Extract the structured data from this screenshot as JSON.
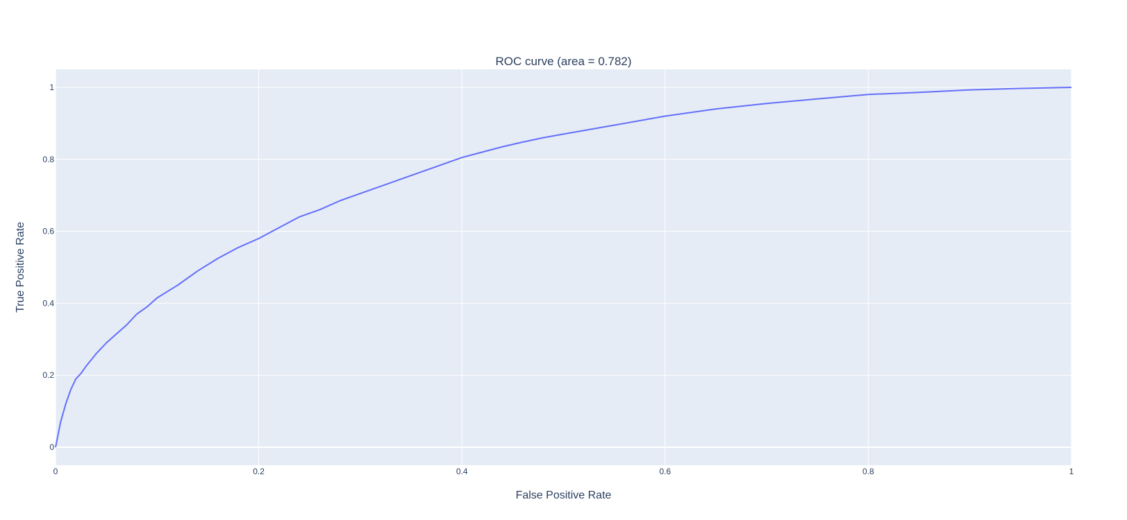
{
  "chart_data": {
    "type": "line",
    "title": "ROC curve (area = 0.782)",
    "xlabel": "False Positive Rate",
    "ylabel": "True Positive Rate",
    "xlim": [
      0,
      1
    ],
    "ylim": [
      -0.05,
      1.05
    ],
    "xticks": [
      0,
      0.2,
      0.4,
      0.6,
      0.8,
      1
    ],
    "xtick_labels": [
      "0",
      "0.2",
      "0.4",
      "0.6",
      "0.8",
      "1"
    ],
    "yticks": [
      0,
      0.2,
      0.4,
      0.6,
      0.8,
      1
    ],
    "ytick_labels": [
      "0",
      "0.2",
      "0.4",
      "0.6",
      "0.8",
      "1"
    ],
    "grid": true,
    "legend": "none",
    "colors": {
      "plot_bg": "#e5ecf6",
      "grid": "#ffffff",
      "line": "#636efa",
      "text": "#2a3f5f"
    },
    "series": [
      {
        "x": [
          0,
          0.005,
          0.01,
          0.015,
          0.02,
          0.025,
          0.03,
          0.04,
          0.05,
          0.06,
          0.07,
          0.08,
          0.09,
          0.1,
          0.12,
          0.14,
          0.16,
          0.18,
          0.2,
          0.22,
          0.24,
          0.26,
          0.28,
          0.3,
          0.32,
          0.34,
          0.36,
          0.38,
          0.4,
          0.42,
          0.44,
          0.46,
          0.48,
          0.5,
          0.55,
          0.6,
          0.65,
          0.7,
          0.75,
          0.8,
          0.85,
          0.9,
          0.95,
          1.0
        ],
        "y": [
          0,
          0.07,
          0.12,
          0.16,
          0.19,
          0.205,
          0.225,
          0.26,
          0.29,
          0.315,
          0.34,
          0.37,
          0.39,
          0.415,
          0.45,
          0.49,
          0.525,
          0.555,
          0.58,
          0.61,
          0.64,
          0.66,
          0.685,
          0.705,
          0.725,
          0.745,
          0.765,
          0.785,
          0.805,
          0.82,
          0.835,
          0.848,
          0.86,
          0.87,
          0.895,
          0.92,
          0.94,
          0.955,
          0.968,
          0.98,
          0.986,
          0.993,
          0.997,
          1.0
        ]
      }
    ]
  }
}
